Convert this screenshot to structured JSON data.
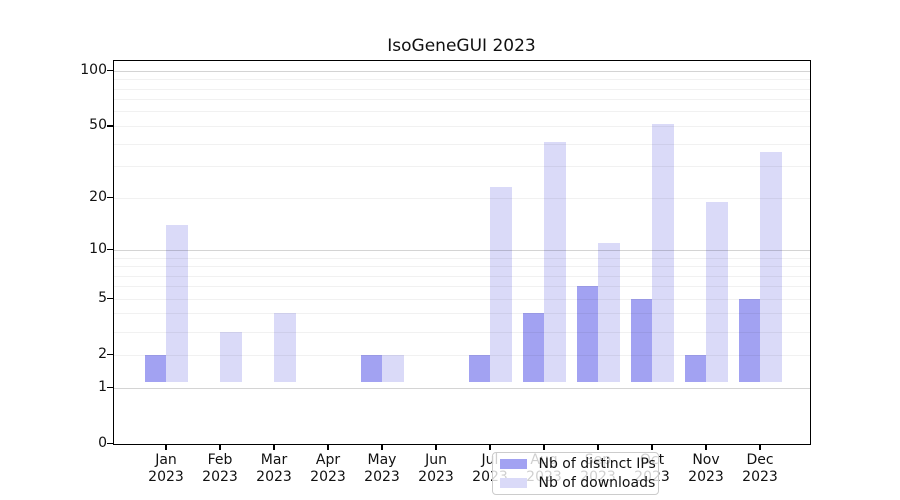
{
  "chart_data": {
    "type": "bar",
    "title": "IsoGeneGUI 2023",
    "year": "2023",
    "categories": [
      "Jan",
      "Feb",
      "Mar",
      "Apr",
      "May",
      "Jun",
      "Jul",
      "Aug",
      "Sep",
      "Oct",
      "Nov",
      "Dec"
    ],
    "series": [
      {
        "name": "Nb of distinct IPs",
        "color": "#a2a2f2",
        "values": [
          2,
          1,
          1,
          1,
          2,
          0,
          2,
          4,
          6,
          5,
          2,
          5
        ]
      },
      {
        "name": "Nb of downloads",
        "color": "#dadaf8",
        "values": [
          14,
          3,
          4,
          1,
          2,
          0,
          23,
          41,
          11,
          51,
          19,
          36
        ]
      }
    ],
    "yscale": "log1p",
    "ylim": [
      0,
      113
    ],
    "yticks": [
      0,
      1,
      2,
      5,
      10,
      20,
      50,
      100
    ],
    "ytick_labels": [
      "0",
      "1",
      "2",
      "5",
      "10",
      "20",
      "50",
      "100"
    ],
    "minor_gridlines": [
      2,
      3,
      4,
      5,
      6,
      7,
      8,
      9,
      20,
      30,
      40,
      50,
      60,
      70,
      80,
      90
    ],
    "major_gridlines": [
      1,
      10,
      100
    ],
    "grid": true,
    "legend_position": "lower center-left inside plot",
    "background": "#ffffff"
  }
}
